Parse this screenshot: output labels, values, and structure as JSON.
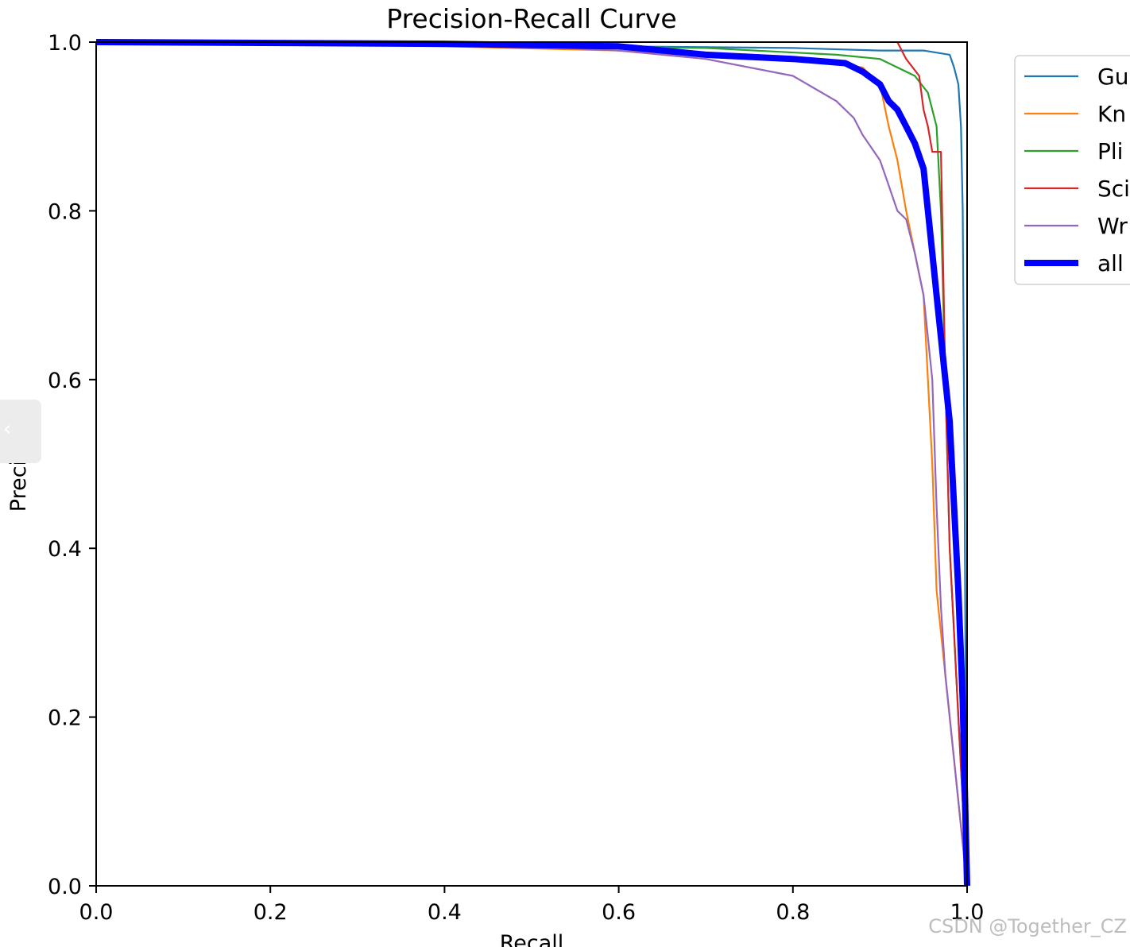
{
  "chart_data": {
    "type": "line",
    "title": "Precision-Recall Curve",
    "xlabel": "Recall",
    "ylabel": "Precision",
    "xlim": [
      0,
      1
    ],
    "ylim": [
      0,
      1
    ],
    "xticks": [
      "0.0",
      "0.2",
      "0.4",
      "0.6",
      "0.8",
      "1.0"
    ],
    "yticks": [
      "0.0",
      "0.2",
      "0.4",
      "0.6",
      "0.8",
      "1.0"
    ],
    "grid": false,
    "legend_position": "outside-top-right",
    "series": [
      {
        "name": "Gu",
        "color": "#1f77b4",
        "x": [
          0.0,
          0.3,
          0.6,
          0.8,
          0.9,
          0.95,
          0.98,
          0.985,
          0.99,
          0.993,
          0.995,
          0.997,
          0.998,
          0.999,
          1.0
        ],
        "y": [
          1.0,
          0.998,
          0.995,
          0.993,
          0.99,
          0.99,
          0.985,
          0.97,
          0.95,
          0.9,
          0.8,
          0.5,
          0.3,
          0.15,
          0.0
        ]
      },
      {
        "name": "Kn",
        "color": "#ff7f0e",
        "x": [
          0.0,
          0.4,
          0.6,
          0.75,
          0.85,
          0.88,
          0.9,
          0.91,
          0.92,
          0.93,
          0.94,
          0.95,
          0.955,
          0.96,
          0.965,
          0.97,
          0.98,
          1.0
        ],
        "y": [
          1.0,
          0.995,
          0.99,
          0.98,
          0.975,
          0.97,
          0.95,
          0.9,
          0.86,
          0.8,
          0.75,
          0.7,
          0.6,
          0.5,
          0.35,
          0.3,
          0.2,
          0.0
        ]
      },
      {
        "name": "Pli",
        "color": "#2ca02c",
        "x": [
          0.0,
          0.5,
          0.7,
          0.85,
          0.9,
          0.92,
          0.94,
          0.955,
          0.965,
          0.97,
          0.975,
          0.98,
          0.985,
          0.99,
          1.0
        ],
        "y": [
          1.0,
          0.995,
          0.993,
          0.985,
          0.98,
          0.97,
          0.96,
          0.94,
          0.9,
          0.8,
          0.6,
          0.4,
          0.3,
          0.2,
          0.0
        ]
      },
      {
        "name": "Sci",
        "color": "#d62728",
        "x": [
          0.92,
          0.93,
          0.945,
          0.95,
          0.955,
          0.96,
          0.97,
          0.975,
          0.98,
          0.985,
          0.99,
          1.0
        ],
        "y": [
          1.0,
          0.98,
          0.96,
          0.92,
          0.9,
          0.87,
          0.87,
          0.6,
          0.4,
          0.3,
          0.2,
          0.0
        ]
      },
      {
        "name": "Wr",
        "color": "#9467bd",
        "x": [
          0.0,
          0.5,
          0.6,
          0.7,
          0.8,
          0.85,
          0.87,
          0.88,
          0.9,
          0.91,
          0.92,
          0.93,
          0.94,
          0.95,
          0.96,
          0.965,
          0.97,
          0.975,
          1.0
        ],
        "y": [
          1.0,
          0.995,
          0.99,
          0.98,
          0.96,
          0.93,
          0.91,
          0.89,
          0.86,
          0.83,
          0.8,
          0.79,
          0.75,
          0.7,
          0.6,
          0.45,
          0.33,
          0.25,
          0.0
        ]
      },
      {
        "name": "all",
        "color": "#0000ff",
        "x": [
          0.0,
          0.4,
          0.6,
          0.7,
          0.8,
          0.86,
          0.88,
          0.9,
          0.91,
          0.92,
          0.93,
          0.94,
          0.95,
          0.955,
          0.96,
          0.965,
          0.97,
          0.975,
          0.98,
          0.985,
          0.99,
          0.995,
          1.0
        ],
        "y": [
          1.0,
          0.998,
          0.995,
          0.985,
          0.98,
          0.975,
          0.965,
          0.95,
          0.93,
          0.92,
          0.9,
          0.88,
          0.85,
          0.8,
          0.75,
          0.7,
          0.65,
          0.6,
          0.55,
          0.45,
          0.35,
          0.22,
          0.0
        ]
      }
    ]
  },
  "watermark": "CSDN @Together_CZ"
}
